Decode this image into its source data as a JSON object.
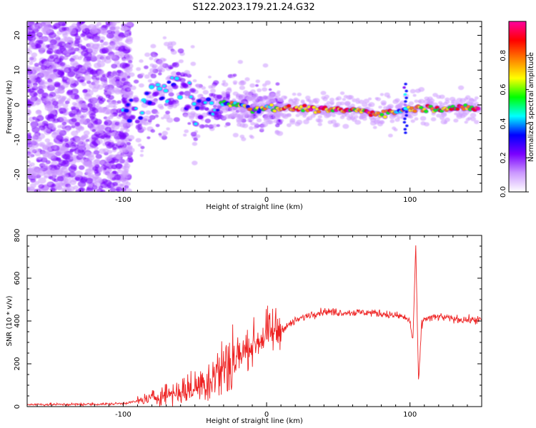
{
  "title": "S122.2023.179.21.24.G32",
  "chart_data": [
    {
      "type": "heatmap",
      "xlabel": "Height of straight line (km)",
      "ylabel": "Frequency (Hz)",
      "xlim": [
        -167,
        150
      ],
      "ylim": [
        -25,
        24
      ],
      "x_ticks": [
        -100,
        0,
        100
      ],
      "y_ticks": [
        20,
        10,
        0,
        -10,
        -20
      ],
      "colorbar": {
        "label": "Normalized spectral amplitude",
        "range": [
          0,
          1
        ],
        "ticks": [
          0.0,
          0.2,
          0.4,
          0.6,
          0.8
        ],
        "colors": [
          "#ffffff",
          "#cc99ff",
          "#7a00ff",
          "#0000ff",
          "#00ffff",
          "#00ff00",
          "#ffff00",
          "#ff8000",
          "#ff0000",
          "#ff00a0"
        ]
      },
      "ridge": {
        "description": "dominant spectral ridge frequency vs height",
        "x": [
          -100,
          -90,
          -80,
          -70,
          -60,
          -50,
          -40,
          -30,
          -20,
          -10,
          0,
          10,
          20,
          30,
          40,
          50,
          60,
          70,
          80,
          90,
          100,
          110,
          120,
          130,
          140,
          148
        ],
        "y": [
          -1.5,
          -2,
          2,
          4,
          6,
          -1,
          -1.5,
          0.5,
          0.5,
          -1.5,
          -0.5,
          -1,
          -1,
          -1,
          -1.5,
          -1.5,
          -1.5,
          -2,
          -2.5,
          -2,
          -1,
          -1,
          -1,
          -1,
          -1,
          -1
        ]
      }
    },
    {
      "type": "line",
      "xlabel": "Height of straight line (km)",
      "ylabel": "SNR (10 * v/v)",
      "xlim": [
        -167,
        150
      ],
      "ylim": [
        0,
        800
      ],
      "x_ticks": [
        -100,
        0,
        100
      ],
      "y_ticks": [
        0,
        200,
        400,
        600,
        800
      ],
      "series": [
        {
          "color": "#ee2222",
          "x": [
            -167,
            -140,
            -110,
            -100,
            -90,
            -80,
            -70,
            -60,
            -50,
            -40,
            -30,
            -20,
            -10,
            0,
            10,
            20,
            30,
            40,
            50,
            60,
            70,
            80,
            90,
            95,
            100,
            102,
            104,
            106,
            108,
            110,
            120,
            130,
            140,
            150
          ],
          "y": [
            10,
            10,
            12,
            15,
            25,
            40,
            60,
            70,
            90,
            130,
            180,
            230,
            290,
            340,
            360,
            400,
            430,
            445,
            440,
            440,
            440,
            435,
            425,
            420,
            400,
            300,
            750,
            100,
            380,
            410,
            420,
            410,
            405,
            405
          ]
        }
      ]
    }
  ]
}
